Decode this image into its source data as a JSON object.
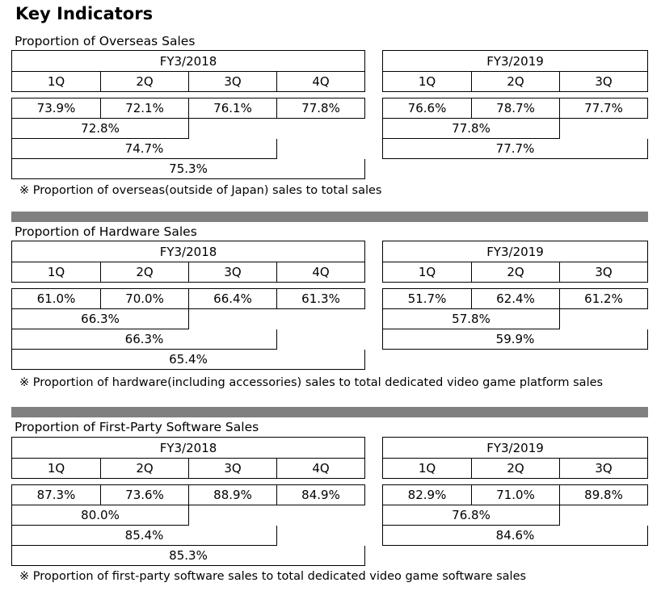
{
  "title": "Key Indicators",
  "sections": [
    {
      "title": "Proportion of Overseas Sales",
      "fy2018": {
        "header": "FY3/2018",
        "quarters": [
          "1Q",
          "2Q",
          "3Q",
          "4Q"
        ],
        "values": [
          "73.9%",
          "72.1%",
          "76.1%",
          "77.8%"
        ],
        "half": "72.8%",
        "three_quarters": "74.7%",
        "full_year": "75.3%"
      },
      "fy2019": {
        "header": "FY3/2019",
        "quarters": [
          "1Q",
          "2Q",
          "3Q"
        ],
        "values": [
          "76.6%",
          "78.7%",
          "77.7%"
        ],
        "half": "77.8%",
        "three_quarters": "77.7%"
      },
      "note": "※ Proportion of overseas(outside of Japan) sales to total sales"
    },
    {
      "title": "Proportion of Hardware Sales",
      "fy2018": {
        "header": "FY3/2018",
        "quarters": [
          "1Q",
          "2Q",
          "3Q",
          "4Q"
        ],
        "values": [
          "61.0%",
          "70.0%",
          "66.4%",
          "61.3%"
        ],
        "half": "66.3%",
        "three_quarters": "66.3%",
        "full_year": "65.4%"
      },
      "fy2019": {
        "header": "FY3/2019",
        "quarters": [
          "1Q",
          "2Q",
          "3Q"
        ],
        "values": [
          "51.7%",
          "62.4%",
          "61.2%"
        ],
        "half": "57.8%",
        "three_quarters": "59.9%"
      },
      "note": "※ Proportion of hardware(including accessories) sales to total dedicated video game platform sales"
    },
    {
      "title": "Proportion of First-Party Software Sales",
      "fy2018": {
        "header": "FY3/2018",
        "quarters": [
          "1Q",
          "2Q",
          "3Q",
          "4Q"
        ],
        "values": [
          "87.3%",
          "73.6%",
          "88.9%",
          "84.9%"
        ],
        "half": "80.0%",
        "three_quarters": "85.4%",
        "full_year": "85.3%"
      },
      "fy2019": {
        "header": "FY3/2019",
        "quarters": [
          "1Q",
          "2Q",
          "3Q"
        ],
        "values": [
          "82.9%",
          "71.0%",
          "89.8%"
        ],
        "half": "76.8%",
        "three_quarters": "84.6%"
      },
      "note": "※ Proportion of first-party software sales to total dedicated video game software sales"
    }
  ]
}
